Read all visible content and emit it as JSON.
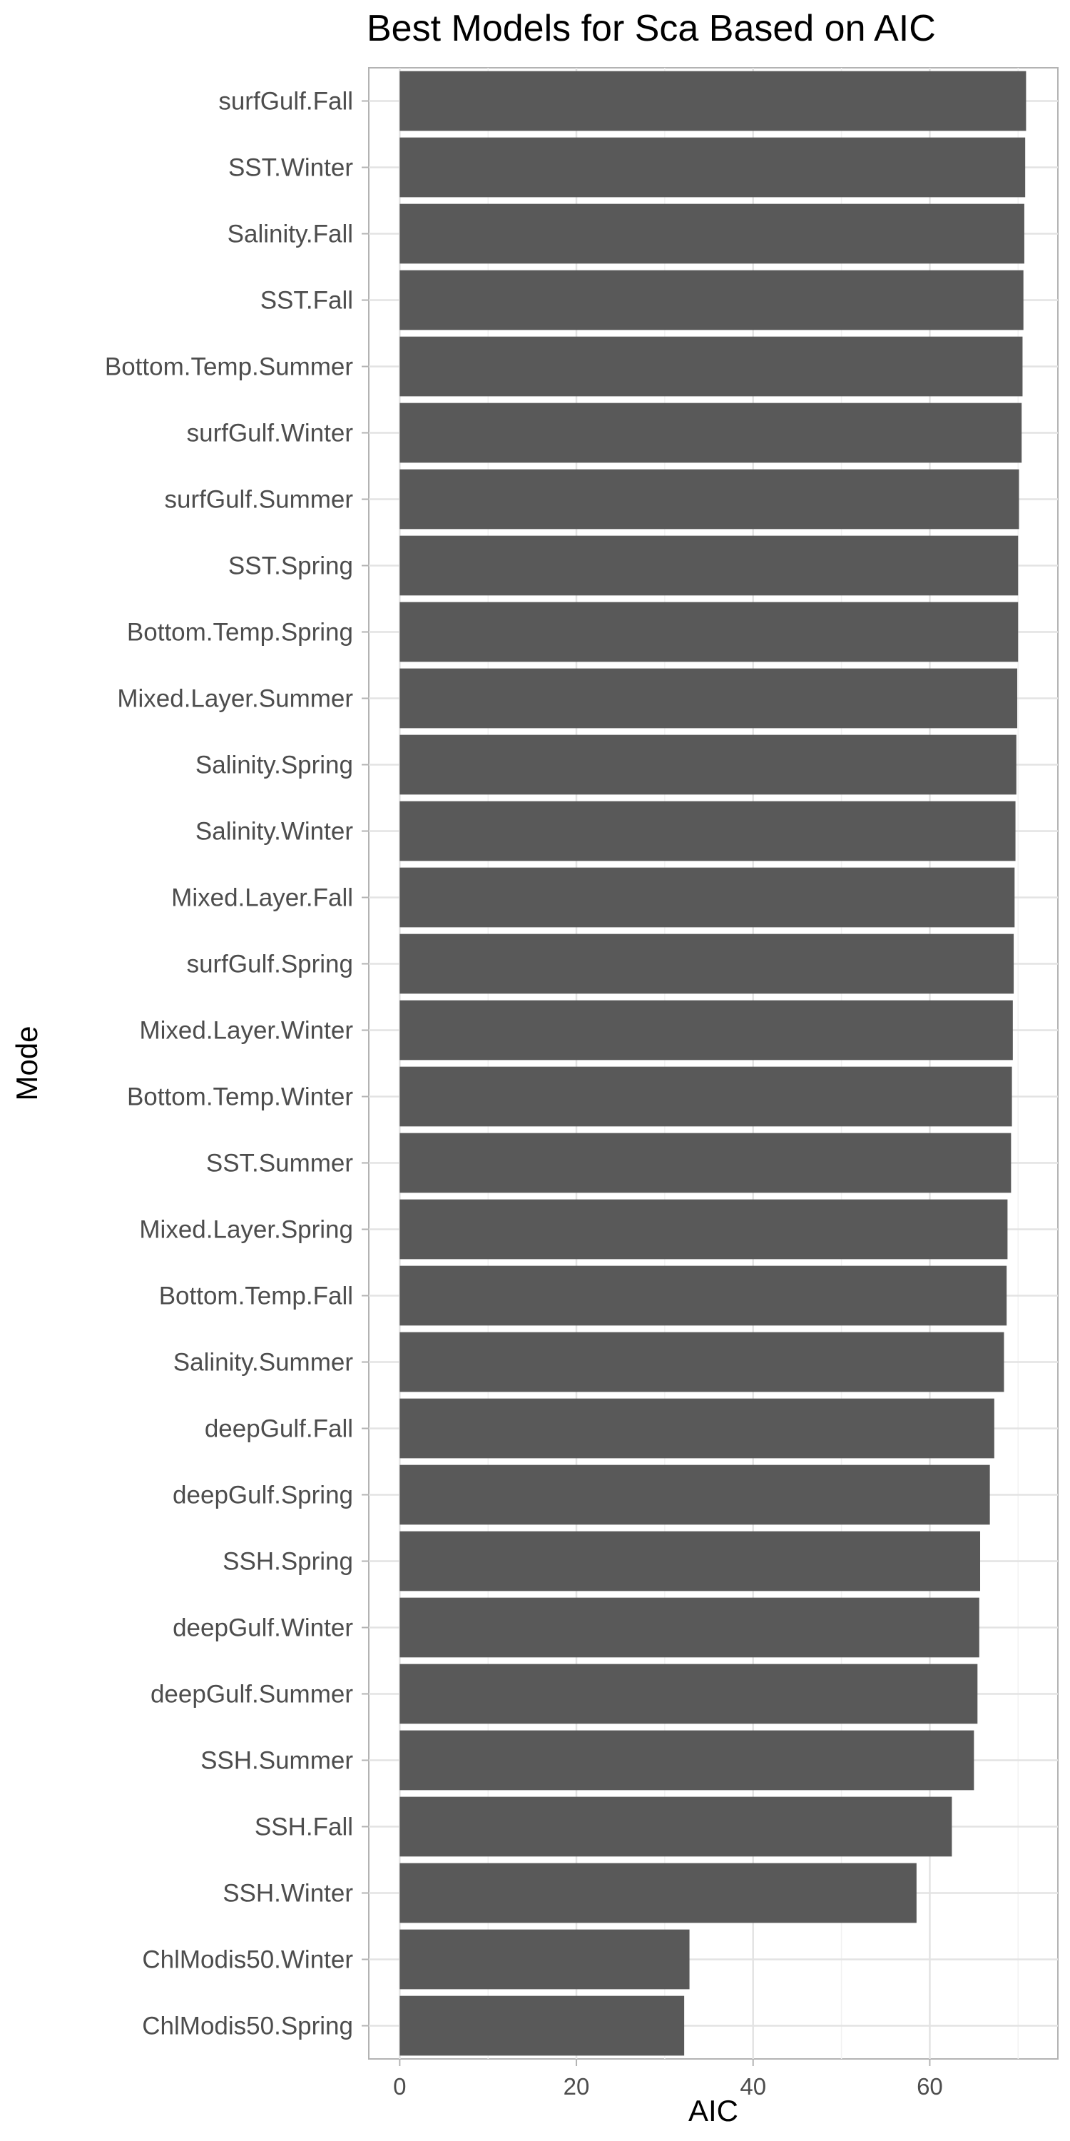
{
  "title": "Best Models for Sca Based on AIC",
  "chart_data": {
    "type": "bar",
    "orientation": "horizontal",
    "title": "Best Models for Sca Based on AIC",
    "xlabel": "AIC",
    "ylabel": "Mode",
    "xlim": [
      -3.5,
      74.5
    ],
    "x_ticks": [
      0,
      20,
      40,
      60
    ],
    "grid": true,
    "bar_color": "#595959",
    "categories": [
      "surfGulf.Fall",
      "SST.Winter",
      "Salinity.Fall",
      "SST.Fall",
      "Bottom.Temp.Summer",
      "surfGulf.Winter",
      "surfGulf.Summer",
      "SST.Spring",
      "Bottom.Temp.Spring",
      "Mixed.Layer.Summer",
      "Salinity.Spring",
      "Salinity.Winter",
      "Mixed.Layer.Fall",
      "surfGulf.Spring",
      "Mixed.Layer.Winter",
      "Bottom.Temp.Winter",
      "SST.Summer",
      "Mixed.Layer.Spring",
      "Bottom.Temp.Fall",
      "Salinity.Summer",
      "deepGulf.Fall",
      "deepGulf.Spring",
      "SSH.Spring",
      "deepGulf.Winter",
      "deepGulf.Summer",
      "SSH.Summer",
      "SSH.Fall",
      "SSH.Winter",
      "ChlModis50.Winter",
      "ChlModis50.Spring"
    ],
    "values": [
      70.9,
      70.8,
      70.7,
      70.6,
      70.5,
      70.4,
      70.1,
      70.0,
      70.0,
      69.9,
      69.8,
      69.7,
      69.6,
      69.5,
      69.4,
      69.3,
      69.2,
      68.8,
      68.7,
      68.4,
      67.3,
      66.8,
      65.7,
      65.6,
      65.4,
      65.0,
      62.5,
      58.5,
      32.8,
      32.2
    ]
  }
}
